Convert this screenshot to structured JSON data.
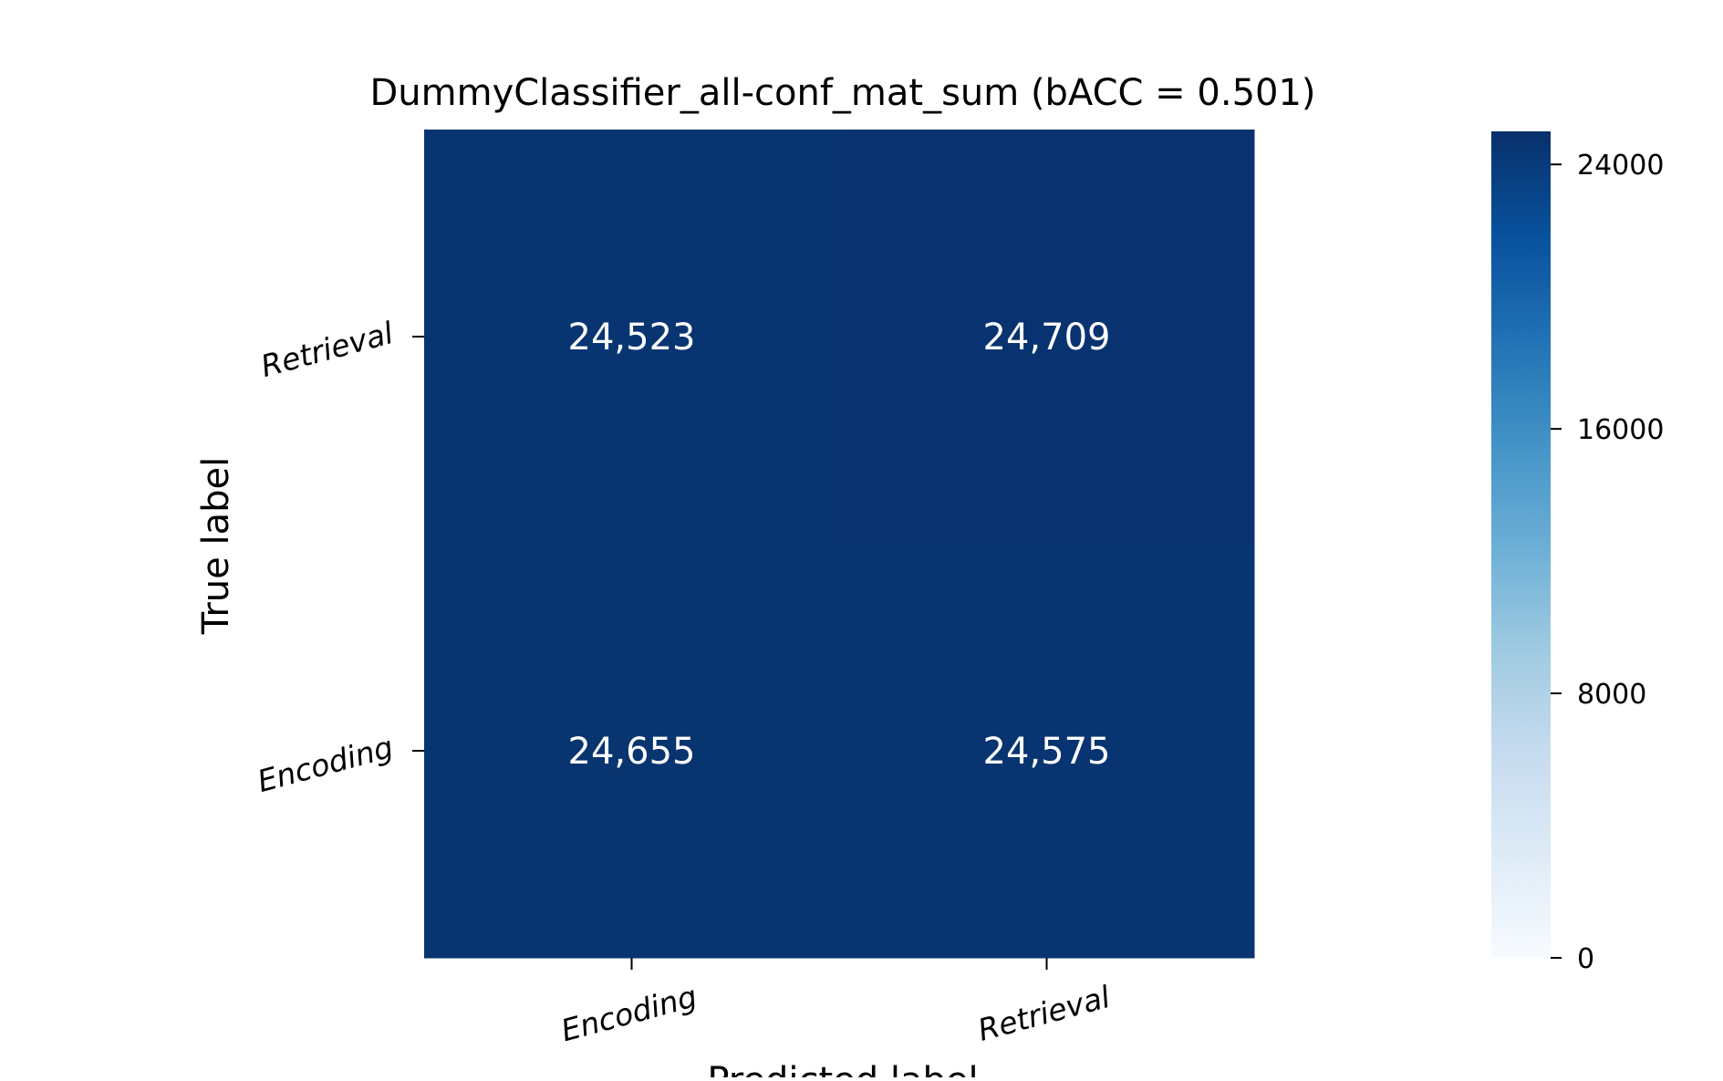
{
  "chart_data": {
    "type": "heatmap",
    "title": "DummyClassifier_all-conf_mat_sum (bACC = 0.501)",
    "xlabel": "Predicted label",
    "ylabel": "True label",
    "x_categories": [
      "Encoding",
      "Retrieval"
    ],
    "y_categories": [
      "Retrieval",
      "Encoding"
    ],
    "values": [
      [
        24523,
        24709
      ],
      [
        24655,
        24575
      ]
    ],
    "cell_labels": [
      [
        "24,523",
        "24,709"
      ],
      [
        "24,655",
        "24,575"
      ]
    ],
    "colorscale": "Blues",
    "colorbar": {
      "range": [
        0,
        25000
      ],
      "ticks": [
        0,
        8000,
        16000,
        24000
      ],
      "tick_labels": [
        "0",
        "8000",
        "16000",
        "24000"
      ]
    },
    "grid": false,
    "colors": {
      "scale_stops": [
        "#f7fbff",
        "#deebf7",
        "#c6dbef",
        "#9ecae1",
        "#6baed6",
        "#4292c6",
        "#2171b5",
        "#08519c",
        "#08306b"
      ],
      "cell_text": "#ffffff",
      "text": "#000000"
    }
  }
}
